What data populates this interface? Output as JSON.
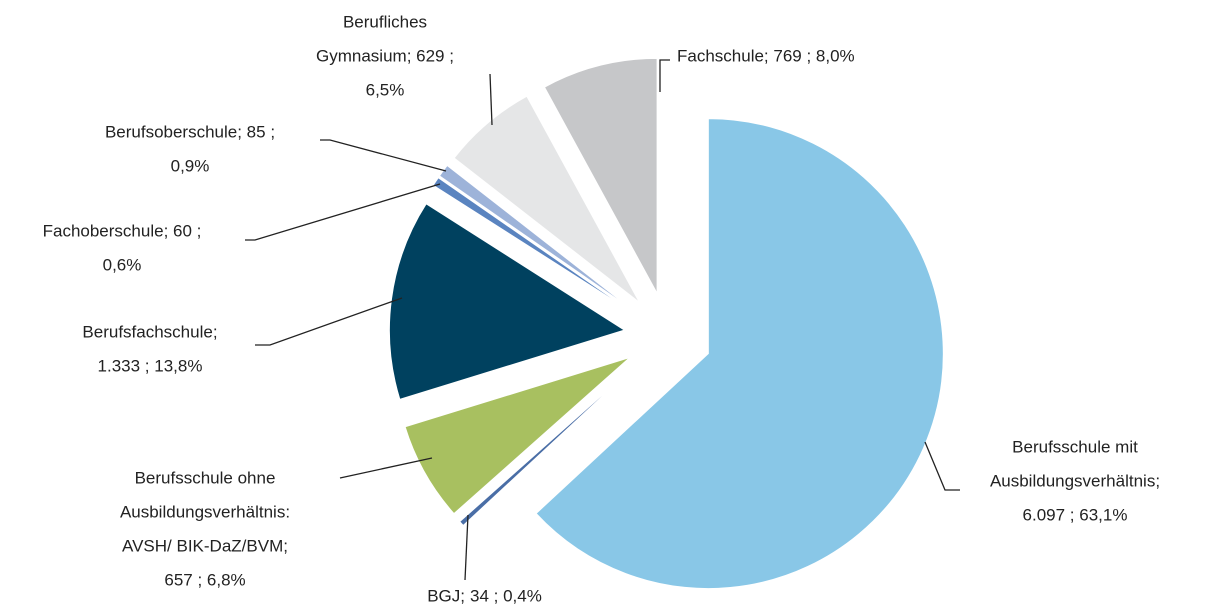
{
  "chart_data": {
    "type": "pie",
    "categories": [
      [
        "Berufsschule mit",
        "Ausbildungsverhältnis;"
      ],
      [
        "BGJ;"
      ],
      [
        "Berufsschule ohne",
        "Ausbildungsverhältnis:",
        "AVSH/ BIK-DaZ/BVM;"
      ],
      [
        "Berufsfachschule;"
      ],
      [
        "Fachoberschule; 60 ;"
      ],
      [
        "Berufsoberschule; 85 ;"
      ],
      [
        "Berufliches",
        "Gymnasium; 629 ;"
      ],
      [
        "Fachschule; 769 ; 8,0%"
      ]
    ],
    "values": [
      6097,
      34,
      657,
      1333,
      60,
      85,
      629,
      769
    ],
    "value_labels": [
      "6.097 ; 63,1%",
      "34 ; 0,4%",
      "657 ; 6,8%",
      "1.333 ; 13,8%",
      "0,6%",
      "0,9%",
      "6,5%",
      null
    ],
    "colors": [
      "#89c7e7",
      "#4a6ea6",
      "#a8c060",
      "#00415f",
      "#5a84c0",
      "#9db3d9",
      "#e5e6e7",
      "#c6c7c9"
    ]
  }
}
